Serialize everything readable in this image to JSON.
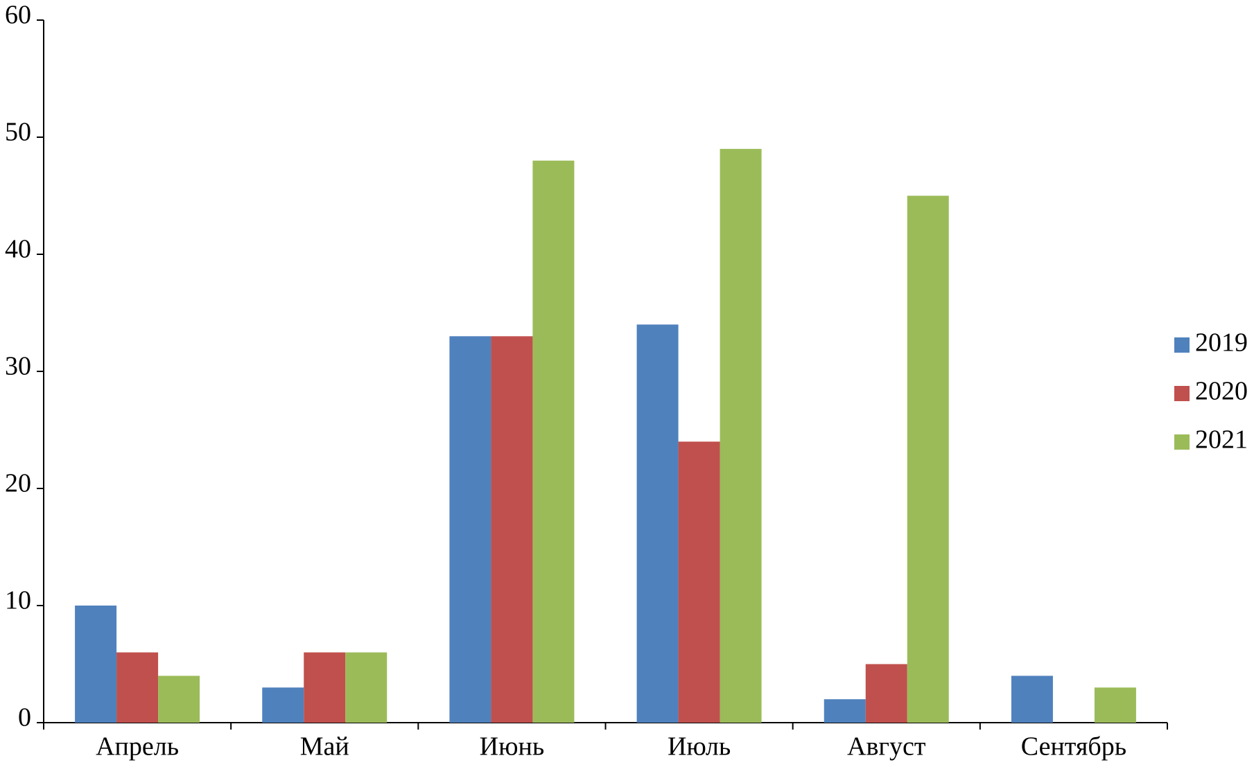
{
  "chart_data": {
    "type": "bar",
    "categories": [
      "Апрель",
      "Май",
      "Июнь",
      "Июль",
      "Август",
      "Сентябрь"
    ],
    "series": [
      {
        "name": "2019",
        "color": "#4f81bd",
        "values": [
          10,
          3,
          33,
          34,
          2,
          4
        ]
      },
      {
        "name": "2020",
        "color": "#c0504d",
        "values": [
          6,
          6,
          33,
          24,
          5,
          0
        ]
      },
      {
        "name": "2021",
        "color": "#9bbb59",
        "values": [
          4,
          6,
          48,
          49,
          45,
          3
        ]
      }
    ],
    "ylim": [
      0,
      60
    ],
    "yticks": [
      0,
      10,
      20,
      30,
      40,
      50,
      60
    ],
    "grid": false,
    "legend": "right"
  }
}
